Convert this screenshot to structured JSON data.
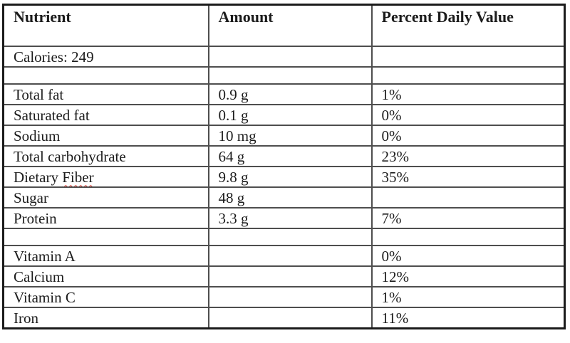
{
  "table": {
    "header": {
      "nutrient": "Nutrient",
      "amount": "Amount",
      "percent_daily_value": "Percent Daily Value"
    },
    "rows": [
      {
        "kind": "calories",
        "nutrient": "Calories: 249",
        "amount": "",
        "percent_daily_value": ""
      },
      {
        "kind": "spacer",
        "nutrient": "",
        "amount": "",
        "percent_daily_value": ""
      },
      {
        "kind": "normal",
        "nutrient": "Total fat",
        "amount": "0.9 g",
        "percent_daily_value": "1%"
      },
      {
        "kind": "normal",
        "nutrient": "Saturated fat",
        "amount": "0.1 g",
        "percent_daily_value": "0%"
      },
      {
        "kind": "normal",
        "nutrient": "Sodium",
        "amount": "10 mg",
        "percent_daily_value": "0%"
      },
      {
        "kind": "normal",
        "nutrient": "Total carbohydrate",
        "amount": "64 g",
        "percent_daily_value": "23%"
      },
      {
        "kind": "normal",
        "nutrient": "Dietary Fiber",
        "amount": "9.8 g",
        "percent_daily_value": "35%",
        "spellcheck_word": "Fiber"
      },
      {
        "kind": "normal",
        "nutrient": "Sugar",
        "amount": "48 g",
        "percent_daily_value": ""
      },
      {
        "kind": "normal",
        "nutrient": "Protein",
        "amount": "3.3 g",
        "percent_daily_value": "7%"
      },
      {
        "kind": "spacer",
        "nutrient": "",
        "amount": "",
        "percent_daily_value": ""
      },
      {
        "kind": "normal",
        "nutrient": "Vitamin A",
        "amount": "",
        "percent_daily_value": "0%"
      },
      {
        "kind": "normal",
        "nutrient": "Calcium",
        "amount": "",
        "percent_daily_value": "12%"
      },
      {
        "kind": "normal",
        "nutrient": "Vitamin C",
        "amount": "",
        "percent_daily_value": "1%"
      },
      {
        "kind": "normal",
        "nutrient": "Iron",
        "amount": "",
        "percent_daily_value": "11%"
      }
    ],
    "colors": {
      "grid_line": "#4e4e4e",
      "outer_border": "#1b1b1b",
      "spellcheck_underline": "#dd3b33"
    }
  }
}
